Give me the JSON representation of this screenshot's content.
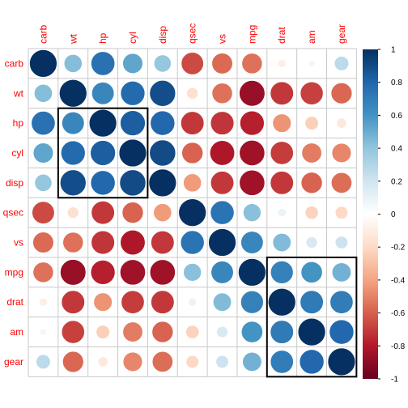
{
  "chart_data": {
    "type": "heatmap",
    "variables": [
      "carb",
      "wt",
      "hp",
      "cyl",
      "disp",
      "qsec",
      "vs",
      "mpg",
      "drat",
      "am",
      "gear"
    ],
    "matrix": [
      [
        1.0,
        0.43,
        0.75,
        0.53,
        0.39,
        -0.66,
        -0.57,
        -0.55,
        -0.09,
        0.06,
        0.27
      ],
      [
        0.43,
        1.0,
        0.66,
        0.78,
        0.89,
        -0.17,
        -0.55,
        -0.87,
        -0.71,
        -0.69,
        -0.58
      ],
      [
        0.75,
        0.66,
        1.0,
        0.83,
        0.79,
        -0.71,
        -0.72,
        -0.78,
        -0.45,
        -0.24,
        -0.13
      ],
      [
        0.53,
        0.78,
        0.83,
        1.0,
        0.9,
        -0.59,
        -0.81,
        -0.85,
        -0.7,
        -0.52,
        -0.49
      ],
      [
        0.39,
        0.89,
        0.79,
        0.9,
        1.0,
        -0.43,
        -0.71,
        -0.85,
        -0.71,
        -0.59,
        -0.56
      ],
      [
        -0.66,
        -0.17,
        -0.71,
        -0.59,
        -0.43,
        1.0,
        0.74,
        0.42,
        0.09,
        -0.23,
        -0.21
      ],
      [
        -0.57,
        -0.55,
        -0.72,
        -0.81,
        -0.71,
        0.74,
        1.0,
        0.66,
        0.44,
        0.17,
        0.21
      ],
      [
        -0.55,
        -0.87,
        -0.78,
        -0.85,
        -0.85,
        0.42,
        0.66,
        1.0,
        0.68,
        0.6,
        0.48
      ],
      [
        -0.09,
        -0.71,
        -0.45,
        -0.7,
        -0.71,
        0.09,
        0.44,
        0.68,
        1.0,
        0.71,
        0.7
      ],
      [
        0.06,
        -0.69,
        -0.24,
        -0.52,
        -0.59,
        -0.23,
        0.17,
        0.6,
        0.71,
        1.0,
        0.79
      ],
      [
        0.27,
        -0.58,
        -0.13,
        -0.49,
        -0.56,
        -0.21,
        0.21,
        0.48,
        0.7,
        0.79,
        1.0
      ]
    ],
    "clusters": [
      {
        "rows": [
          "hp",
          "disp"
        ],
        "cols": [
          "wt",
          "cyl"
        ]
      },
      {
        "rows": [
          "mpg",
          "gear"
        ],
        "cols": [
          "drat",
          "gear"
        ]
      }
    ],
    "colorbar": {
      "range": [
        -1,
        1
      ],
      "ticks": [
        "1",
        "0.8",
        "0.6",
        "0.4",
        "0.2",
        "0",
        "-0.2",
        "-0.4",
        "-0.6",
        "-0.8",
        "-1"
      ],
      "high_color": "#053061",
      "low_color": "#67001F"
    },
    "label_color": "#FF0000",
    "grid": true
  }
}
